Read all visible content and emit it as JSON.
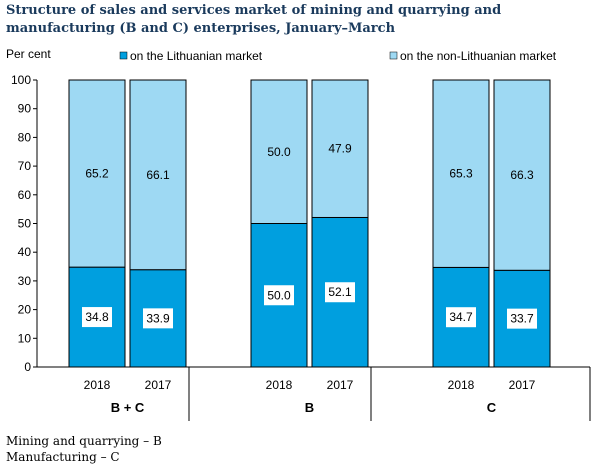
{
  "title": "Structure of sales and services market of mining and quarrying and manufacturing (B and C) enterprises, January–March",
  "notes": [
    "Mining and quarrying – B",
    "Manufacturing – C"
  ],
  "chart_data": {
    "type": "bar",
    "stacked": true,
    "ylabel": "Per cent",
    "ylim": [
      0,
      100
    ],
    "yticks": [
      0,
      10,
      20,
      30,
      40,
      50,
      60,
      70,
      80,
      90,
      100
    ],
    "groups": [
      {
        "label": "B + C",
        "categories": [
          "2018",
          "2017"
        ]
      },
      {
        "label": "B",
        "categories": [
          "2018",
          "2017"
        ]
      },
      {
        "label": "C",
        "categories": [
          "2018",
          "2017"
        ]
      }
    ],
    "series": [
      {
        "name": "on the Lithuanian market",
        "color": "#009fdf",
        "values": [
          34.8,
          33.9,
          50.0,
          52.1,
          34.7,
          33.7
        ],
        "labels": [
          "34.8",
          "33.9",
          "50.0",
          "52.1",
          "34.7",
          "33.7"
        ]
      },
      {
        "name": "on the non-Lithuanian market",
        "color": "#9ed9f3",
        "values": [
          65.2,
          66.1,
          50.0,
          47.9,
          65.3,
          66.3
        ],
        "labels": [
          "65.2",
          "66.1",
          "50.0",
          "47.9",
          "65.3",
          "66.3"
        ]
      }
    ],
    "legend_position": "top",
    "grid": false
  }
}
